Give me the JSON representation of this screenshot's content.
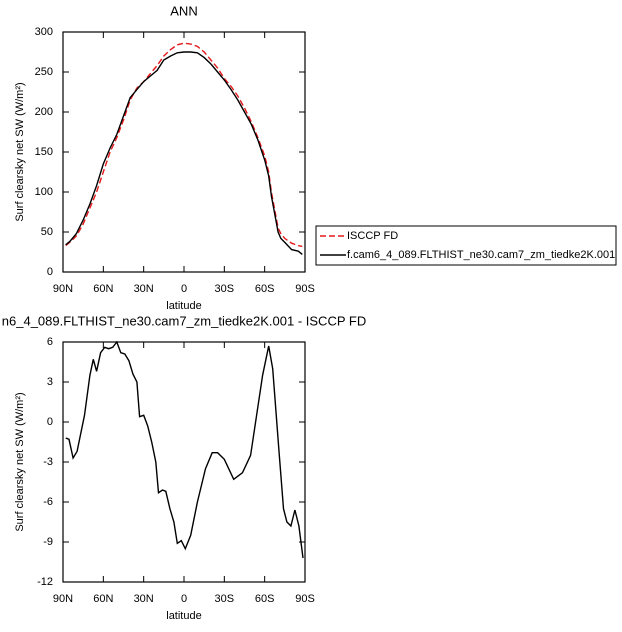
{
  "chart_data": [
    {
      "type": "line",
      "title": "ANN",
      "xlabel": "latitude",
      "ylabel": "Surf clearsky net SW (W/m²)",
      "xlim": [
        90,
        -90
      ],
      "ylim": [
        0,
        300
      ],
      "xticks": [
        {
          "value": 90,
          "label": "90N"
        },
        {
          "value": 60,
          "label": "60N"
        },
        {
          "value": 30,
          "label": "30N"
        },
        0,
        {
          "value": -30,
          "label": "30S"
        },
        {
          "value": -60,
          "label": "60S"
        },
        {
          "value": -90,
          "label": "90S"
        }
      ],
      "yticks": [
        0,
        50,
        100,
        150,
        200,
        250,
        300
      ],
      "legend": "right",
      "series": [
        {
          "name": "ISCCP FD",
          "color": "#e41a1c",
          "linestyle": "dashed",
          "x": [
            88,
            85,
            80,
            75,
            70,
            65,
            60,
            55,
            50,
            45,
            40,
            35,
            30,
            25,
            20,
            15,
            10,
            5,
            0,
            -5,
            -10,
            -15,
            -20,
            -25,
            -30,
            -35,
            -40,
            -45,
            -50,
            -55,
            -60,
            -63,
            -65,
            -70,
            -72,
            -75,
            -80,
            -85,
            -88
          ],
          "values": [
            33,
            37,
            45,
            60,
            80,
            100,
            125,
            150,
            168,
            190,
            215,
            230,
            238,
            248,
            258,
            270,
            278,
            284,
            286,
            285,
            282,
            275,
            265,
            255,
            242,
            232,
            220,
            205,
            188,
            168,
            145,
            125,
            100,
            55,
            48,
            42,
            36,
            33,
            32
          ]
        },
        {
          "name": "f.cam6_4_089.FLTHIST_ne30.cam7_zm_tiedke2K.001",
          "color": "#000000",
          "linestyle": "solid",
          "x": [
            88,
            85,
            80,
            75,
            70,
            65,
            60,
            55,
            50,
            45,
            40,
            35,
            30,
            25,
            20,
            15,
            10,
            5,
            0,
            -5,
            -10,
            -15,
            -20,
            -25,
            -30,
            -35,
            -40,
            -45,
            -50,
            -55,
            -60,
            -63,
            -65,
            -70,
            -72,
            -75,
            -80,
            -85,
            -88
          ],
          "values": [
            34,
            38,
            48,
            65,
            85,
            108,
            135,
            155,
            172,
            195,
            218,
            228,
            238,
            245,
            252,
            265,
            270,
            274,
            275,
            275,
            274,
            268,
            260,
            250,
            240,
            228,
            215,
            200,
            185,
            165,
            140,
            120,
            95,
            50,
            42,
            37,
            28,
            26,
            22
          ]
        }
      ]
    },
    {
      "type": "line",
      "title": "n6_4_089.FLTHIST_ne30.cam7_zm_tiedke2K.001 - ISCCP FD",
      "xlabel": "latitude",
      "ylabel": "Surf clearsky net SW (W/m²)",
      "xlim": [
        90,
        -90
      ],
      "ylim": [
        -12,
        6
      ],
      "xticks": [
        {
          "value": 90,
          "label": "90N"
        },
        {
          "value": 60,
          "label": "60N"
        },
        {
          "value": 30,
          "label": "30N"
        },
        0,
        {
          "value": -30,
          "label": "30S"
        },
        {
          "value": -60,
          "label": "60S"
        },
        {
          "value": -90,
          "label": "90S"
        }
      ],
      "yticks": [
        -12,
        -9,
        -6,
        -3,
        0,
        3,
        6
      ],
      "series": [
        {
          "color": "#000000",
          "linestyle": "solid",
          "x": [
            88,
            85.5,
            82.5,
            79.5,
            74,
            70,
            67.5,
            65,
            62,
            59,
            56,
            53,
            50,
            47,
            44,
            41,
            38,
            35,
            33,
            30,
            27,
            24,
            21,
            19,
            16,
            13.5,
            10.5,
            7.5,
            5,
            2,
            -1,
            -5,
            -10,
            -16,
            -21,
            -25,
            -30,
            -37,
            -43.5,
            -49.5,
            -54,
            -58.5,
            -63,
            -66,
            -70.5,
            -74,
            -76.5,
            -79.5,
            -82.5,
            -85.5,
            -88.5
          ],
          "values": [
            -1.2,
            -1.3,
            -2.7,
            -2.2,
            0.5,
            3.5,
            4.7,
            3.8,
            5.2,
            5.6,
            5.5,
            5.6,
            6.0,
            5.2,
            5.1,
            4.6,
            3.6,
            3.0,
            0.4,
            0.5,
            -0.3,
            -1.5,
            -3.0,
            -5.3,
            -5.1,
            -5.2,
            -6.5,
            -7.5,
            -9.1,
            -8.9,
            -9.5,
            -8.5,
            -6.0,
            -3.5,
            -2.3,
            -2.3,
            -2.8,
            -4.3,
            -3.8,
            -2.5,
            0.5,
            3.5,
            5.7,
            4.0,
            -2.0,
            -6.5,
            -7.5,
            -7.8,
            -6.6,
            -7.8,
            -10.2
          ]
        }
      ]
    }
  ]
}
